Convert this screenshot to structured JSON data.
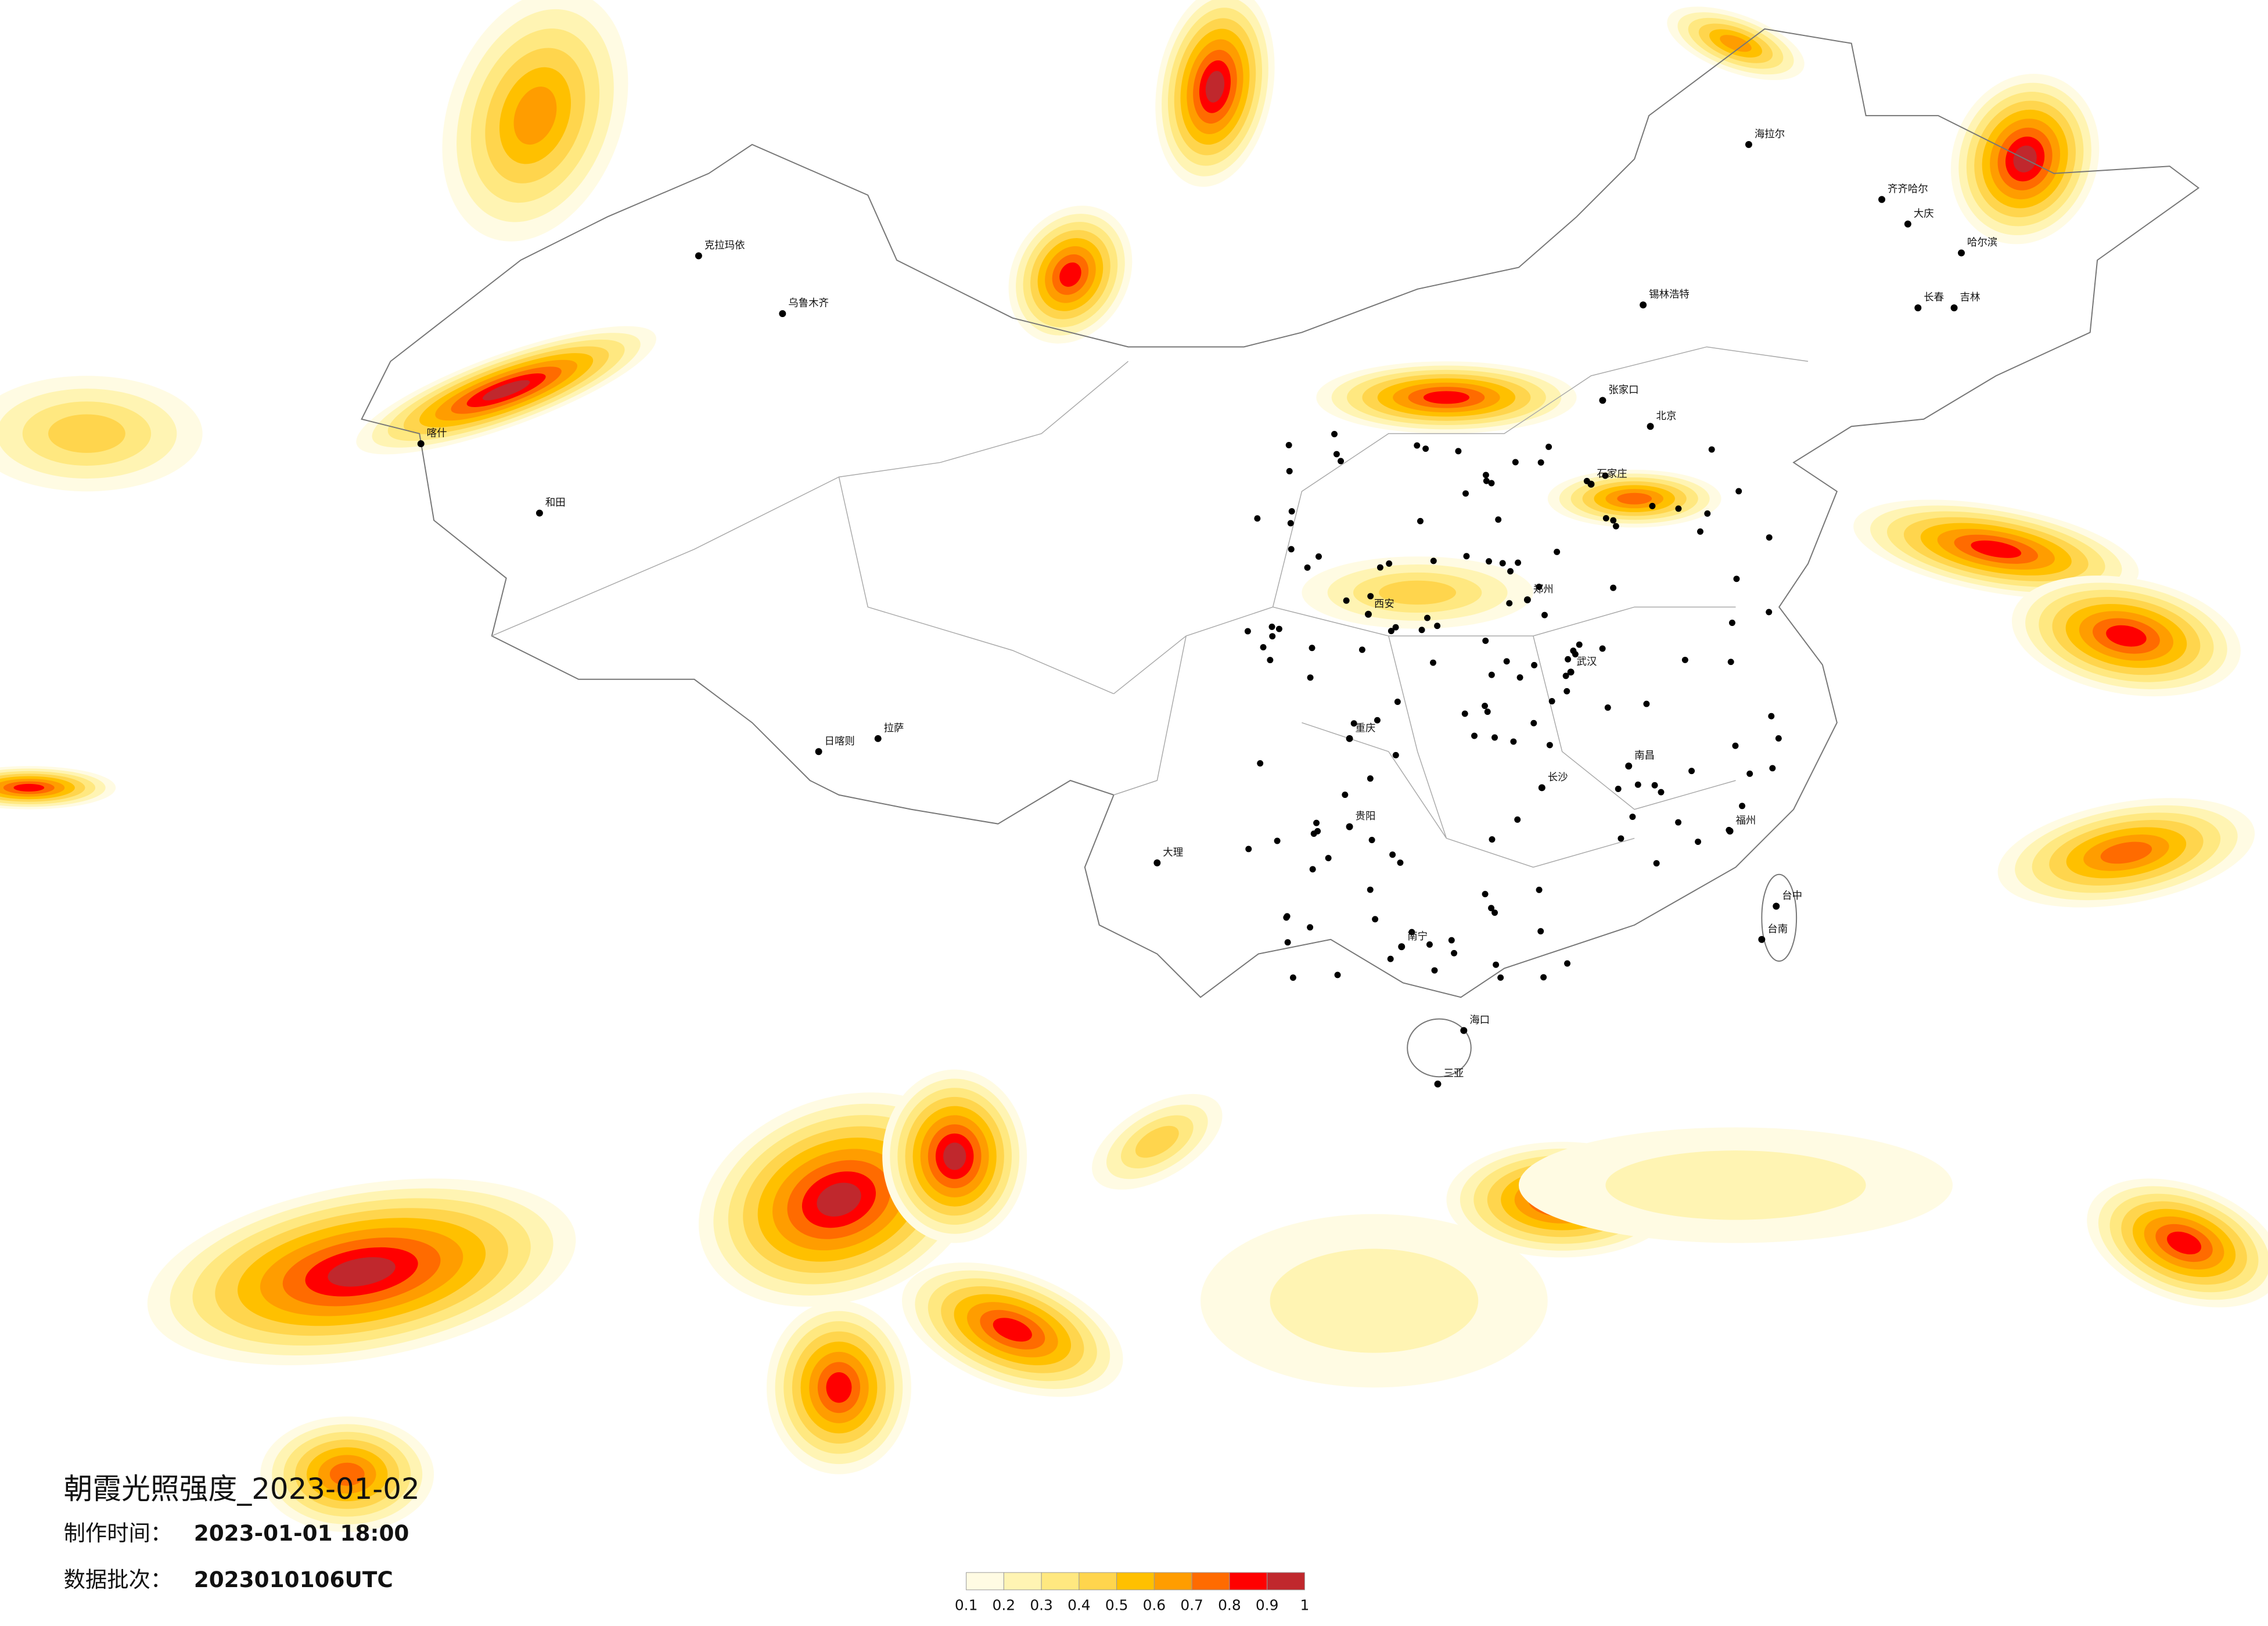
{
  "header": {
    "title": "朝霞光照强度_2023-01-02",
    "made_label": "制作时间：",
    "made_value": "2023-01-01 18:00",
    "batch_label": "数据批次：",
    "batch_value": "2023010106UTC"
  },
  "legend": {
    "bins": [
      0.1,
      0.2,
      0.3,
      0.4,
      0.5,
      0.6,
      0.7,
      0.8,
      0.9,
      1
    ],
    "colors": [
      "#fffbe3",
      "#fff4b3",
      "#ffe880",
      "#ffd54d",
      "#ffc000",
      "#ff9d00",
      "#ff6b00",
      "#ff0000",
      "#c0282d"
    ]
  },
  "cities": [
    "海拉尔",
    "齐齐哈尔",
    "大庆",
    "哈尔滨",
    "长春",
    "吉林",
    "锡林浩特",
    "张家口",
    "北京",
    "石家庄",
    "克拉玛依",
    "乌鲁木齐",
    "和田",
    "喀什",
    "拉萨",
    "日喀则",
    "重庆",
    "贵阳",
    "大理",
    "南宁",
    "海口",
    "三亚",
    "台中",
    "台南",
    "长沙",
    "武汉",
    "南昌",
    "福州",
    "郑州",
    "西安"
  ]
}
